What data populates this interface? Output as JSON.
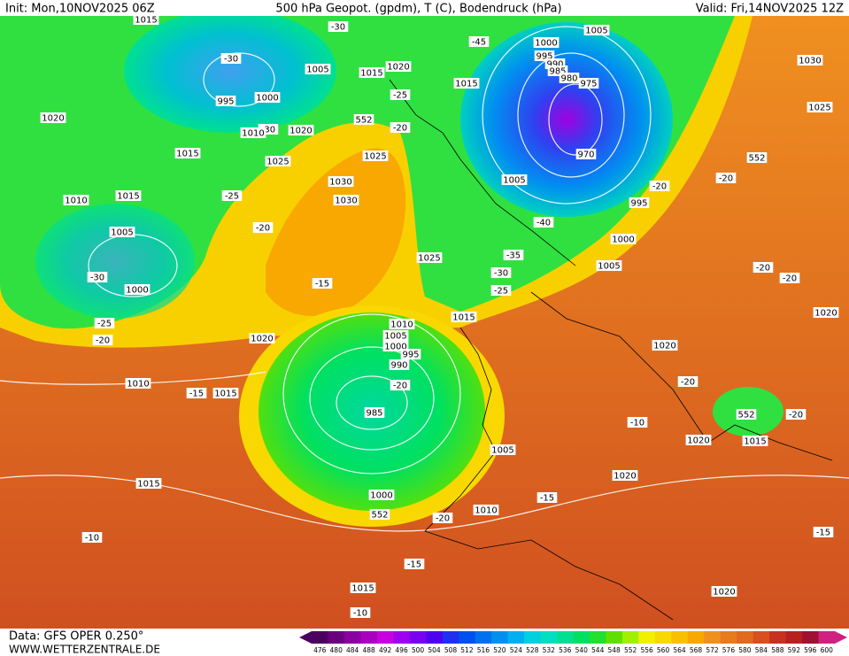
{
  "header": {
    "init": "Init: Mon,10NOV2025 06Z",
    "title": "500 hPa Geopot. (gpdm), T (C), Bodendruck (hPa)",
    "valid": "Valid: Fri,14NOV2025 12Z"
  },
  "footer": {
    "data": "Data: GFS OPER 0.250°",
    "site": "WWW.WETTERZENTRALE.DE"
  },
  "colorbar": {
    "values": [
      476,
      480,
      484,
      488,
      492,
      496,
      500,
      504,
      508,
      512,
      516,
      520,
      524,
      528,
      532,
      536,
      540,
      544,
      548,
      552,
      556,
      560,
      564,
      568,
      572,
      576,
      580,
      584,
      588,
      592,
      596,
      600
    ],
    "colors": [
      "#4b0060",
      "#6a0080",
      "#8a00a0",
      "#aa00c0",
      "#c800e0",
      "#a000f0",
      "#7a00f0",
      "#5000f0",
      "#2030f0",
      "#0050f0",
      "#0070f0",
      "#0090f0",
      "#00b0f0",
      "#00d0e0",
      "#00e0c0",
      "#00e090",
      "#00e060",
      "#20e030",
      "#60e000",
      "#a0f000",
      "#f0f000",
      "#f8d800",
      "#f8c000",
      "#f8a800",
      "#f09020",
      "#e87a20",
      "#e06a20",
      "#d85020",
      "#c83020",
      "#b82020",
      "#a01030",
      "#d02080"
    ]
  },
  "map_labels": [
    "1015",
    "-30",
    "-30",
    "-45",
    "1000",
    "1005",
    "995",
    "990",
    "985",
    "980",
    "975",
    "970",
    "1030",
    "1025",
    "552",
    "1005",
    "1015",
    "1020",
    "1015",
    "-25",
    "995",
    "1000",
    "-30",
    "1010",
    "1020",
    "552",
    "-20",
    "1020",
    "1015",
    "1025",
    "1025",
    "1030",
    "1030",
    "1015",
    "1010",
    "-25",
    "-20",
    "1005",
    "-30",
    "1000",
    "-25",
    "-20",
    "-15",
    "1025",
    "1005",
    "-20",
    "995",
    "-40",
    "1000",
    "1005",
    "-35",
    "-30",
    "-25",
    "-20",
    "-20",
    "-20",
    "1020",
    "1015",
    "1010",
    "1005",
    "1000",
    "995",
    "990",
    "-20",
    "985",
    "1020",
    "1010",
    "-15",
    "1015",
    "1020",
    "-20",
    "-10",
    "552",
    "-20",
    "1020",
    "1015",
    "1005",
    "1020",
    "1015",
    "1000",
    "552",
    "-20",
    "1010",
    "-15",
    "-10",
    "-15",
    "1015",
    "1020",
    "-10",
    "-15"
  ]
}
